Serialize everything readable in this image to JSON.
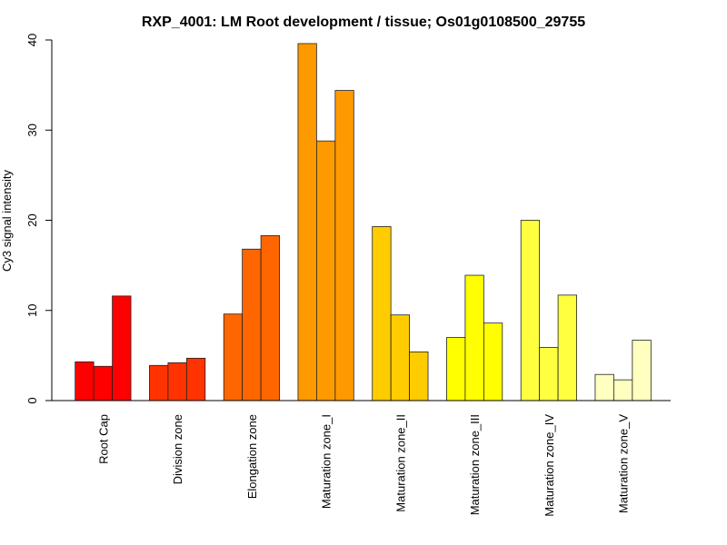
{
  "chart_data": {
    "type": "bar",
    "title": "RXP_4001: LM Root development / tissue; Os01g0108500_29755",
    "xlabel": "",
    "ylabel": "Cy3 signal intensity",
    "ylim": [
      0,
      40
    ],
    "yticks": [
      0,
      10,
      20,
      30,
      40
    ],
    "grid": false,
    "legend": "none",
    "categories": [
      "Root Cap",
      "Division zone",
      "Elongation zone",
      "Maturation zone_I",
      "Maturation zone_II",
      "Maturation zone_III",
      "Maturation zone_IV",
      "Maturation zone_V"
    ],
    "colors": [
      "#FF0000",
      "#FF3300",
      "#FF6600",
      "#FF9900",
      "#FFCC00",
      "#FFFF00",
      "#FFFF40",
      "#FFFFBF"
    ],
    "replicates_per_category": 3,
    "values": [
      [
        4.3,
        3.8,
        11.6
      ],
      [
        3.9,
        4.2,
        4.7
      ],
      [
        9.6,
        16.8,
        18.3
      ],
      [
        39.6,
        28.8,
        34.4
      ],
      [
        19.3,
        9.5,
        5.4
      ],
      [
        7.0,
        13.9,
        8.6
      ],
      [
        20.0,
        5.9,
        11.7
      ],
      [
        2.9,
        2.3,
        6.7
      ]
    ]
  }
}
